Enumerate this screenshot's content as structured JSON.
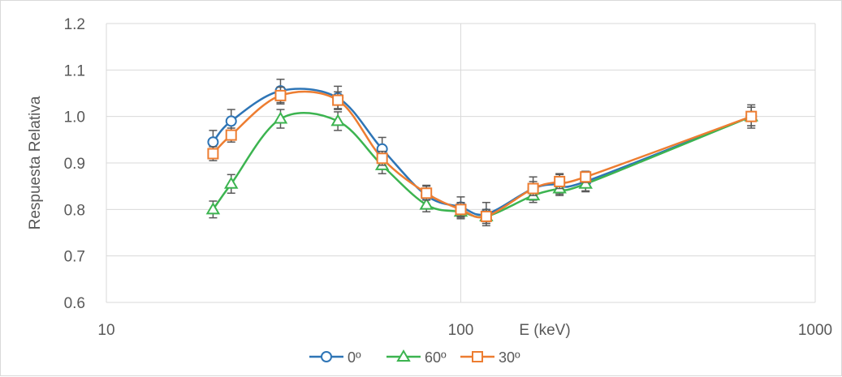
{
  "chart_data": {
    "type": "line",
    "xscale": "log",
    "xlim": [
      10,
      1000
    ],
    "ylim": [
      0.6,
      1.2
    ],
    "xticks": [
      "10",
      "100",
      "1000"
    ],
    "yticks": [
      "0.6",
      "0.7",
      "0.8",
      "0.9",
      "1.0",
      "1.1",
      "1.2"
    ],
    "xlabel": "E (keV)",
    "ylabel": "Respuesta Relativa",
    "grid": true,
    "legend_position": "bottom",
    "x": [
      20,
      22.5,
      31,
      45,
      60,
      80,
      100,
      118,
      160,
      190,
      225,
      660
    ],
    "series": [
      {
        "name": "0º",
        "marker": "circle",
        "color": "#2e75b6",
        "values": [
          0.945,
          0.99,
          1.055,
          1.04,
          0.93,
          0.83,
          0.805,
          0.79,
          0.845,
          0.855,
          0.86,
          1.0
        ],
        "error": [
          0.025,
          0.025,
          0.025,
          0.025,
          0.025,
          0.022,
          0.022,
          0.025,
          0.025,
          0.022,
          0.022,
          0.025
        ]
      },
      {
        "name": "60º",
        "marker": "triangle",
        "color": "#3cb450",
        "values": [
          0.8,
          0.855,
          0.995,
          0.99,
          0.895,
          0.81,
          0.795,
          0.785,
          0.83,
          0.845,
          0.855,
          1.0
        ],
        "error": [
          0.018,
          0.02,
          0.02,
          0.02,
          0.018,
          0.015,
          0.015,
          0.015,
          0.015,
          0.015,
          0.015,
          0.02
        ]
      },
      {
        "name": "30º",
        "marker": "square",
        "color": "#ed7d31",
        "values": [
          0.92,
          0.96,
          1.045,
          1.035,
          0.91,
          0.835,
          0.8,
          0.785,
          0.845,
          0.86,
          0.87,
          1.0
        ],
        "error": [
          0.015,
          0.015,
          0.018,
          0.018,
          0.015,
          0.015,
          0.015,
          0.015,
          0.015,
          0.015,
          0.012,
          0.02
        ]
      }
    ],
    "colors": {
      "grid": "#d9d9d9",
      "error_bar": "#595959",
      "text": "#595959"
    }
  }
}
